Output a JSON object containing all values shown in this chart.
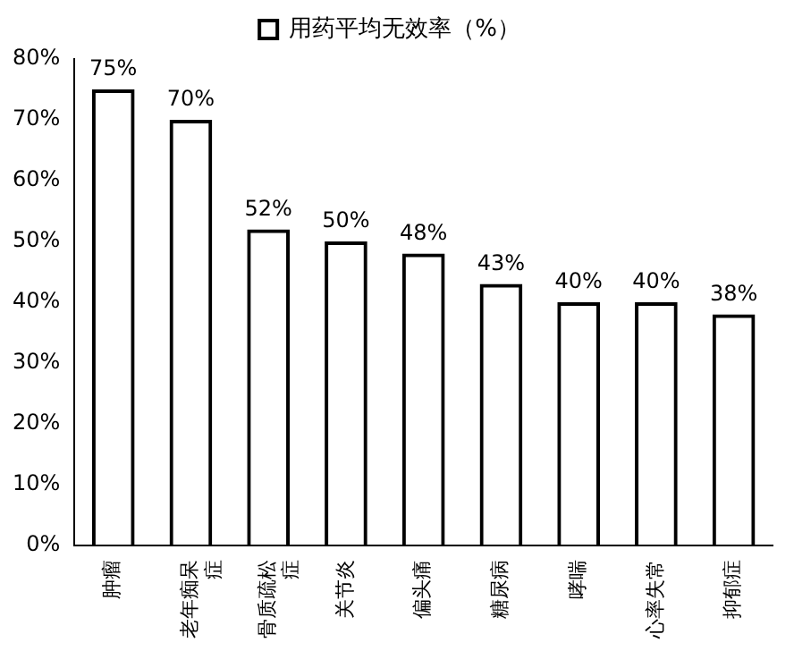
{
  "chart_data": {
    "type": "bar",
    "categories": [
      "肿瘤",
      "老年痴呆症",
      "骨质疏松症",
      "关节炎",
      "偏头痛",
      "糖尿病",
      "哮喘",
      "心率失常",
      "抑郁症"
    ],
    "series": [
      {
        "name": "用药平均无效率（%）",
        "color": "#000000",
        "values": [
          75,
          70,
          52,
          50,
          48,
          43,
          40,
          40,
          38
        ],
        "value_labels": [
          "75%",
          "70%",
          "52%",
          "50%",
          "48%",
          "43%",
          "40%",
          "40%",
          "38%"
        ]
      }
    ],
    "ylim": [
      0,
      80
    ],
    "yticks": [
      {
        "value": 0,
        "label": "0%"
      },
      {
        "value": 10,
        "label": "10%"
      },
      {
        "value": 20,
        "label": "20%"
      },
      {
        "value": 30,
        "label": "30%"
      },
      {
        "value": 40,
        "label": "40%"
      },
      {
        "value": 50,
        "label": "50%"
      },
      {
        "value": 60,
        "label": "60%"
      },
      {
        "value": 70,
        "label": "70%"
      },
      {
        "value": 80,
        "label": "80%"
      }
    ],
    "grid": false,
    "legend": "top"
  }
}
